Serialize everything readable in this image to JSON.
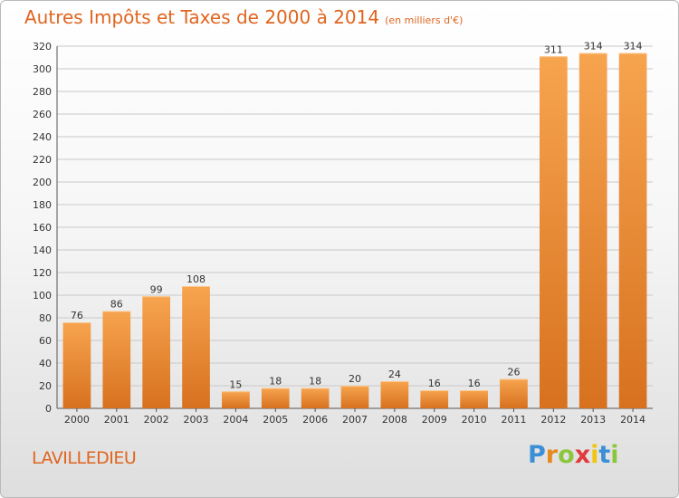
{
  "title": "Autres Impôts et Taxes de 2000 à 2014",
  "unit": "(en milliers d'€)",
  "commune": "LAVILLEDIEU",
  "logo": {
    "letters": [
      "P",
      "r",
      "o",
      "x",
      "i",
      "t",
      "i"
    ],
    "colors": [
      "#3a8fd6",
      "#e58a1e",
      "#8cc63f",
      "#e23a3a",
      "#f2c511",
      "#3a8fd6",
      "#8cc63f"
    ]
  },
  "colors": {
    "bar_top": "#f7a44f",
    "bar_bottom": "#d7711f",
    "title": "#e0651f",
    "grid": "#c8c8c8"
  },
  "chart_data": {
    "type": "bar",
    "categories": [
      "2000",
      "2001",
      "2002",
      "2003",
      "2004",
      "2005",
      "2006",
      "2007",
      "2008",
      "2009",
      "2010",
      "2011",
      "2012",
      "2013",
      "2014"
    ],
    "values": [
      76,
      86,
      99,
      108,
      15,
      18,
      18,
      20,
      24,
      16,
      16,
      26,
      311,
      314,
      314
    ],
    "ylim": [
      0,
      320
    ],
    "yticks": [
      0,
      20,
      40,
      60,
      80,
      100,
      120,
      140,
      160,
      180,
      200,
      220,
      240,
      260,
      280,
      300,
      320
    ],
    "grid": true,
    "data_labels": true
  }
}
